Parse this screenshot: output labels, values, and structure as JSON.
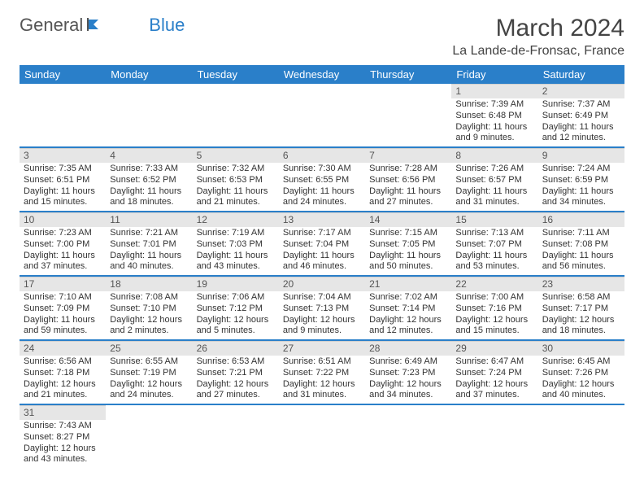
{
  "logo": {
    "text1": "General",
    "text2": "Blue"
  },
  "title": "March 2024",
  "location": "La Lande-de-Fronsac, France",
  "colors": {
    "header_bg": "#2a7fc9",
    "header_text": "#ffffff",
    "daynum_bg": "#e6e6e6",
    "row_border": "#2a7fc9",
    "text": "#333333",
    "page_bg": "#ffffff"
  },
  "fonts": {
    "title_size": 30,
    "location_size": 16,
    "header_size": 13,
    "body_size": 11
  },
  "day_headers": [
    "Sunday",
    "Monday",
    "Tuesday",
    "Wednesday",
    "Thursday",
    "Friday",
    "Saturday"
  ],
  "weeks": [
    [
      null,
      null,
      null,
      null,
      null,
      {
        "n": "1",
        "l1": "Sunrise: 7:39 AM",
        "l2": "Sunset: 6:48 PM",
        "l3": "Daylight: 11 hours",
        "l4": "and 9 minutes."
      },
      {
        "n": "2",
        "l1": "Sunrise: 7:37 AM",
        "l2": "Sunset: 6:49 PM",
        "l3": "Daylight: 11 hours",
        "l4": "and 12 minutes."
      }
    ],
    [
      {
        "n": "3",
        "l1": "Sunrise: 7:35 AM",
        "l2": "Sunset: 6:51 PM",
        "l3": "Daylight: 11 hours",
        "l4": "and 15 minutes."
      },
      {
        "n": "4",
        "l1": "Sunrise: 7:33 AM",
        "l2": "Sunset: 6:52 PM",
        "l3": "Daylight: 11 hours",
        "l4": "and 18 minutes."
      },
      {
        "n": "5",
        "l1": "Sunrise: 7:32 AM",
        "l2": "Sunset: 6:53 PM",
        "l3": "Daylight: 11 hours",
        "l4": "and 21 minutes."
      },
      {
        "n": "6",
        "l1": "Sunrise: 7:30 AM",
        "l2": "Sunset: 6:55 PM",
        "l3": "Daylight: 11 hours",
        "l4": "and 24 minutes."
      },
      {
        "n": "7",
        "l1": "Sunrise: 7:28 AM",
        "l2": "Sunset: 6:56 PM",
        "l3": "Daylight: 11 hours",
        "l4": "and 27 minutes."
      },
      {
        "n": "8",
        "l1": "Sunrise: 7:26 AM",
        "l2": "Sunset: 6:57 PM",
        "l3": "Daylight: 11 hours",
        "l4": "and 31 minutes."
      },
      {
        "n": "9",
        "l1": "Sunrise: 7:24 AM",
        "l2": "Sunset: 6:59 PM",
        "l3": "Daylight: 11 hours",
        "l4": "and 34 minutes."
      }
    ],
    [
      {
        "n": "10",
        "l1": "Sunrise: 7:23 AM",
        "l2": "Sunset: 7:00 PM",
        "l3": "Daylight: 11 hours",
        "l4": "and 37 minutes."
      },
      {
        "n": "11",
        "l1": "Sunrise: 7:21 AM",
        "l2": "Sunset: 7:01 PM",
        "l3": "Daylight: 11 hours",
        "l4": "and 40 minutes."
      },
      {
        "n": "12",
        "l1": "Sunrise: 7:19 AM",
        "l2": "Sunset: 7:03 PM",
        "l3": "Daylight: 11 hours",
        "l4": "and 43 minutes."
      },
      {
        "n": "13",
        "l1": "Sunrise: 7:17 AM",
        "l2": "Sunset: 7:04 PM",
        "l3": "Daylight: 11 hours",
        "l4": "and 46 minutes."
      },
      {
        "n": "14",
        "l1": "Sunrise: 7:15 AM",
        "l2": "Sunset: 7:05 PM",
        "l3": "Daylight: 11 hours",
        "l4": "and 50 minutes."
      },
      {
        "n": "15",
        "l1": "Sunrise: 7:13 AM",
        "l2": "Sunset: 7:07 PM",
        "l3": "Daylight: 11 hours",
        "l4": "and 53 minutes."
      },
      {
        "n": "16",
        "l1": "Sunrise: 7:11 AM",
        "l2": "Sunset: 7:08 PM",
        "l3": "Daylight: 11 hours",
        "l4": "and 56 minutes."
      }
    ],
    [
      {
        "n": "17",
        "l1": "Sunrise: 7:10 AM",
        "l2": "Sunset: 7:09 PM",
        "l3": "Daylight: 11 hours",
        "l4": "and 59 minutes."
      },
      {
        "n": "18",
        "l1": "Sunrise: 7:08 AM",
        "l2": "Sunset: 7:10 PM",
        "l3": "Daylight: 12 hours",
        "l4": "and 2 minutes."
      },
      {
        "n": "19",
        "l1": "Sunrise: 7:06 AM",
        "l2": "Sunset: 7:12 PM",
        "l3": "Daylight: 12 hours",
        "l4": "and 5 minutes."
      },
      {
        "n": "20",
        "l1": "Sunrise: 7:04 AM",
        "l2": "Sunset: 7:13 PM",
        "l3": "Daylight: 12 hours",
        "l4": "and 9 minutes."
      },
      {
        "n": "21",
        "l1": "Sunrise: 7:02 AM",
        "l2": "Sunset: 7:14 PM",
        "l3": "Daylight: 12 hours",
        "l4": "and 12 minutes."
      },
      {
        "n": "22",
        "l1": "Sunrise: 7:00 AM",
        "l2": "Sunset: 7:16 PM",
        "l3": "Daylight: 12 hours",
        "l4": "and 15 minutes."
      },
      {
        "n": "23",
        "l1": "Sunrise: 6:58 AM",
        "l2": "Sunset: 7:17 PM",
        "l3": "Daylight: 12 hours",
        "l4": "and 18 minutes."
      }
    ],
    [
      {
        "n": "24",
        "l1": "Sunrise: 6:56 AM",
        "l2": "Sunset: 7:18 PM",
        "l3": "Daylight: 12 hours",
        "l4": "and 21 minutes."
      },
      {
        "n": "25",
        "l1": "Sunrise: 6:55 AM",
        "l2": "Sunset: 7:19 PM",
        "l3": "Daylight: 12 hours",
        "l4": "and 24 minutes."
      },
      {
        "n": "26",
        "l1": "Sunrise: 6:53 AM",
        "l2": "Sunset: 7:21 PM",
        "l3": "Daylight: 12 hours",
        "l4": "and 27 minutes."
      },
      {
        "n": "27",
        "l1": "Sunrise: 6:51 AM",
        "l2": "Sunset: 7:22 PM",
        "l3": "Daylight: 12 hours",
        "l4": "and 31 minutes."
      },
      {
        "n": "28",
        "l1": "Sunrise: 6:49 AM",
        "l2": "Sunset: 7:23 PM",
        "l3": "Daylight: 12 hours",
        "l4": "and 34 minutes."
      },
      {
        "n": "29",
        "l1": "Sunrise: 6:47 AM",
        "l2": "Sunset: 7:24 PM",
        "l3": "Daylight: 12 hours",
        "l4": "and 37 minutes."
      },
      {
        "n": "30",
        "l1": "Sunrise: 6:45 AM",
        "l2": "Sunset: 7:26 PM",
        "l3": "Daylight: 12 hours",
        "l4": "and 40 minutes."
      }
    ],
    [
      {
        "n": "31",
        "l1": "Sunrise: 7:43 AM",
        "l2": "Sunset: 8:27 PM",
        "l3": "Daylight: 12 hours",
        "l4": "and 43 minutes."
      },
      null,
      null,
      null,
      null,
      null,
      null
    ]
  ]
}
